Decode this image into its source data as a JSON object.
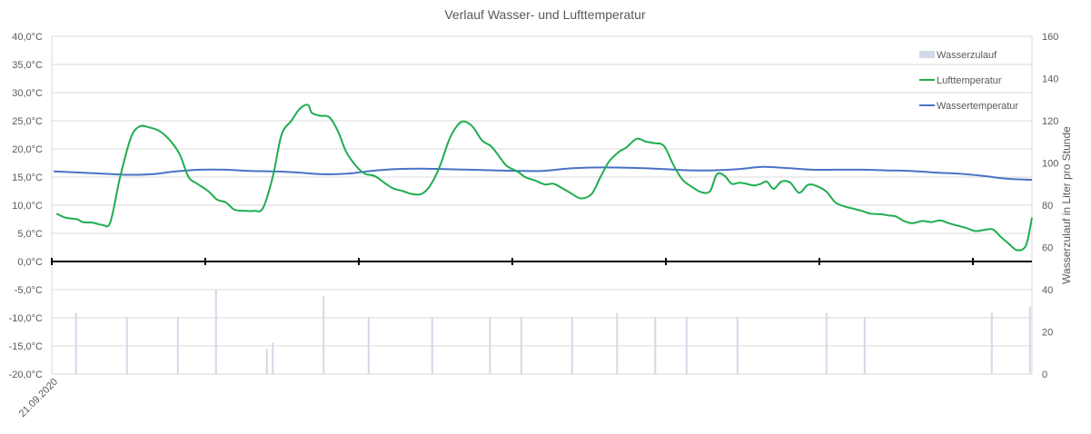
{
  "chart_data": {
    "type": "line",
    "title": "Verlauf Wasser- und Lufttemperatur",
    "xlabel": "",
    "ylabel": "",
    "y2label": "Wasserzulauf in Liter pro Stunde",
    "x_tick_labels": [
      "21.09.2020"
    ],
    "ylim": [
      -20,
      40
    ],
    "y_ticks": [
      "-20,0°C",
      "-15,0°C",
      "-10,0°C",
      "-5,0°C",
      "0,0°C",
      "5,0°C",
      "10,0°C",
      "15,0°C",
      "20,0°C",
      "25,0°C",
      "30,0°C",
      "35,0°C",
      "40,0°C"
    ],
    "y2lim": [
      0,
      160
    ],
    "y2_ticks": [
      "0",
      "20",
      "40",
      "60",
      "80",
      "100",
      "120",
      "140",
      "160"
    ],
    "x_range": [
      0,
      100
    ],
    "grid": true,
    "legend_position": "top-right",
    "colors": {
      "Wasserzulauf": "#d2d9e8",
      "Lufttemperatur": "#1fad4f",
      "Wassertemperatur": "#4a72c5"
    },
    "series": [
      {
        "name": "Wasserzulauf",
        "kind": "bar",
        "axis": "secondary",
        "x": [
          2.3,
          7.5,
          12.7,
          16.6,
          21.8,
          22.4,
          27.6,
          32.2,
          38.7,
          44.6,
          47.8,
          53.0,
          57.6,
          61.5,
          64.7,
          69.9,
          79.0,
          82.9,
          95.9,
          99.8
        ],
        "values": [
          29,
          27,
          27,
          40,
          12,
          15,
          37,
          27,
          27,
          27,
          27,
          27,
          29,
          27,
          27,
          27,
          29,
          27,
          29,
          32
        ]
      },
      {
        "name": "Lufttemperatur",
        "kind": "line",
        "axis": "primary",
        "x": [
          0.3,
          1.2,
          2.4,
          3.0,
          4.0,
          5.0,
          5.8,
          6.8,
          7.9,
          8.8,
          9.8,
          10.8,
          11.9,
          12.9,
          13.8,
          14.7,
          15.8,
          16.7,
          17.6,
          18.5,
          19.6,
          20.5,
          21.4,
          22.4,
          23.3,
          24.3,
          25.2,
          26.0,
          26.4,
          27.2,
          28.2,
          29.1,
          29.9,
          30.9,
          31.8,
          32.8,
          33.8,
          34.7,
          35.7,
          36.6,
          37.6,
          38.5,
          39.5,
          40.4,
          41.2,
          41.9,
          42.8,
          43.8,
          44.7,
          45.4,
          46.3,
          47.4,
          48.2,
          49.2,
          50.2,
          51.1,
          52.0,
          53.0,
          53.9,
          55.0,
          55.9,
          56.8,
          57.8,
          58.5,
          59.6,
          60.5,
          61.5,
          62.4,
          63.4,
          64.3,
          65.3,
          66.2,
          67.1,
          67.8,
          68.6,
          69.3,
          70.1,
          70.8,
          71.6,
          72.3,
          72.9,
          73.6,
          74.4,
          75.3,
          76.2,
          77.1,
          78.0,
          79.0,
          79.9,
          80.8,
          81.7,
          82.6,
          83.5,
          84.5,
          85.3,
          86.1,
          86.9,
          87.8,
          88.8,
          89.7,
          90.6,
          91.5,
          92.3,
          93.2,
          94.2,
          95.1,
          96.0,
          96.8,
          97.6,
          98.5,
          99.4,
          100.0
        ],
        "values": [
          8.5,
          7.8,
          7.5,
          7.0,
          6.9,
          6.5,
          7.0,
          15.0,
          22.0,
          24.0,
          23.8,
          23.2,
          21.5,
          19.0,
          15.0,
          13.8,
          12.5,
          11.0,
          10.5,
          9.2,
          9.0,
          9.0,
          9.5,
          15.0,
          22.5,
          25.0,
          27.2,
          27.8,
          26.4,
          25.9,
          25.6,
          23.0,
          19.5,
          17.0,
          15.6,
          15.2,
          14.0,
          13.0,
          12.5,
          12.0,
          12.0,
          13.5,
          17.0,
          21.5,
          24.0,
          24.9,
          24.0,
          21.5,
          20.5,
          19.0,
          17.0,
          16.0,
          15.0,
          14.4,
          13.7,
          13.8,
          13.0,
          12.0,
          11.2,
          12.0,
          15.0,
          17.8,
          19.5,
          20.2,
          21.8,
          21.3,
          21.0,
          20.5,
          17.0,
          14.5,
          13.2,
          12.3,
          12.5,
          15.5,
          15.2,
          13.8,
          14.0,
          13.8,
          13.5,
          13.8,
          14.2,
          12.9,
          14.2,
          14.0,
          12.2,
          13.6,
          13.4,
          12.4,
          10.5,
          9.8,
          9.4,
          9.0,
          8.5,
          8.4,
          8.2,
          8.0,
          7.2,
          6.8,
          7.2,
          7.0,
          7.3,
          6.8,
          6.4,
          6.0,
          5.4,
          5.6,
          5.7,
          4.4,
          3.2,
          2.0,
          2.9,
          7.8
        ]
      },
      {
        "name": "Wassertemperatur",
        "kind": "line",
        "axis": "primary",
        "x": [
          0,
          2.5,
          5,
          7.5,
          10,
          12.5,
          15,
          17.5,
          20,
          22.5,
          25,
          27.5,
          30,
          32.5,
          35,
          37.5,
          40,
          42.5,
          45,
          47.5,
          50,
          52.5,
          55,
          57.5,
          60,
          62.5,
          65,
          67.5,
          70,
          72.5,
          75,
          77.5,
          80,
          82.5,
          85,
          87.5,
          90,
          92.5,
          95,
          97.5,
          100
        ],
        "values": [
          16.0,
          15.8,
          15.6,
          15.4,
          15.5,
          16.0,
          16.3,
          16.3,
          16.1,
          16.0,
          15.8,
          15.5,
          15.6,
          16.1,
          16.4,
          16.5,
          16.4,
          16.3,
          16.2,
          16.1,
          16.1,
          16.5,
          16.7,
          16.7,
          16.6,
          16.4,
          16.2,
          16.2,
          16.4,
          16.8,
          16.6,
          16.3,
          16.3,
          16.3,
          16.2,
          16.1,
          15.8,
          15.6,
          15.2,
          14.7,
          14.5
        ]
      }
    ]
  }
}
